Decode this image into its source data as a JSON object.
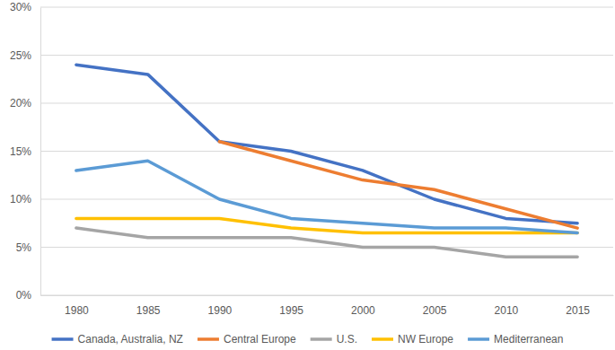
{
  "chart_data": {
    "type": "line",
    "categories": [
      "1980",
      "1985",
      "1990",
      "1995",
      "2000",
      "2005",
      "2010",
      "2015"
    ],
    "series": [
      {
        "name": "Canada, Australia, NZ",
        "color": "#4472c4",
        "values": [
          24,
          23,
          16,
          15,
          13,
          10,
          8,
          7.5
        ]
      },
      {
        "name": "Central Europe",
        "color": "#ed7d31",
        "values": [
          null,
          null,
          16,
          14,
          12,
          11,
          9,
          7
        ]
      },
      {
        "name": "U.S.",
        "color": "#a5a5a5",
        "values": [
          7,
          6,
          6,
          6,
          5,
          5,
          4,
          4
        ]
      },
      {
        "name": "NW Europe",
        "color": "#ffc000",
        "values": [
          8,
          8,
          8,
          7,
          6.5,
          6.5,
          6.5,
          6.5
        ]
      },
      {
        "name": "Mediterranean",
        "color": "#5b9bd5",
        "values": [
          13,
          14,
          10,
          8,
          7.5,
          7,
          7,
          6.5
        ]
      }
    ],
    "ylim": [
      0,
      30
    ],
    "yticks": [
      {
        "value": 0,
        "label": "0%"
      },
      {
        "value": 5,
        "label": "5%"
      },
      {
        "value": 10,
        "label": "10%"
      },
      {
        "value": 15,
        "label": "15%"
      },
      {
        "value": 20,
        "label": "20%"
      },
      {
        "value": 25,
        "label": "25%"
      },
      {
        "value": 30,
        "label": "30%"
      }
    ],
    "grid": true,
    "legend": "bottom"
  }
}
